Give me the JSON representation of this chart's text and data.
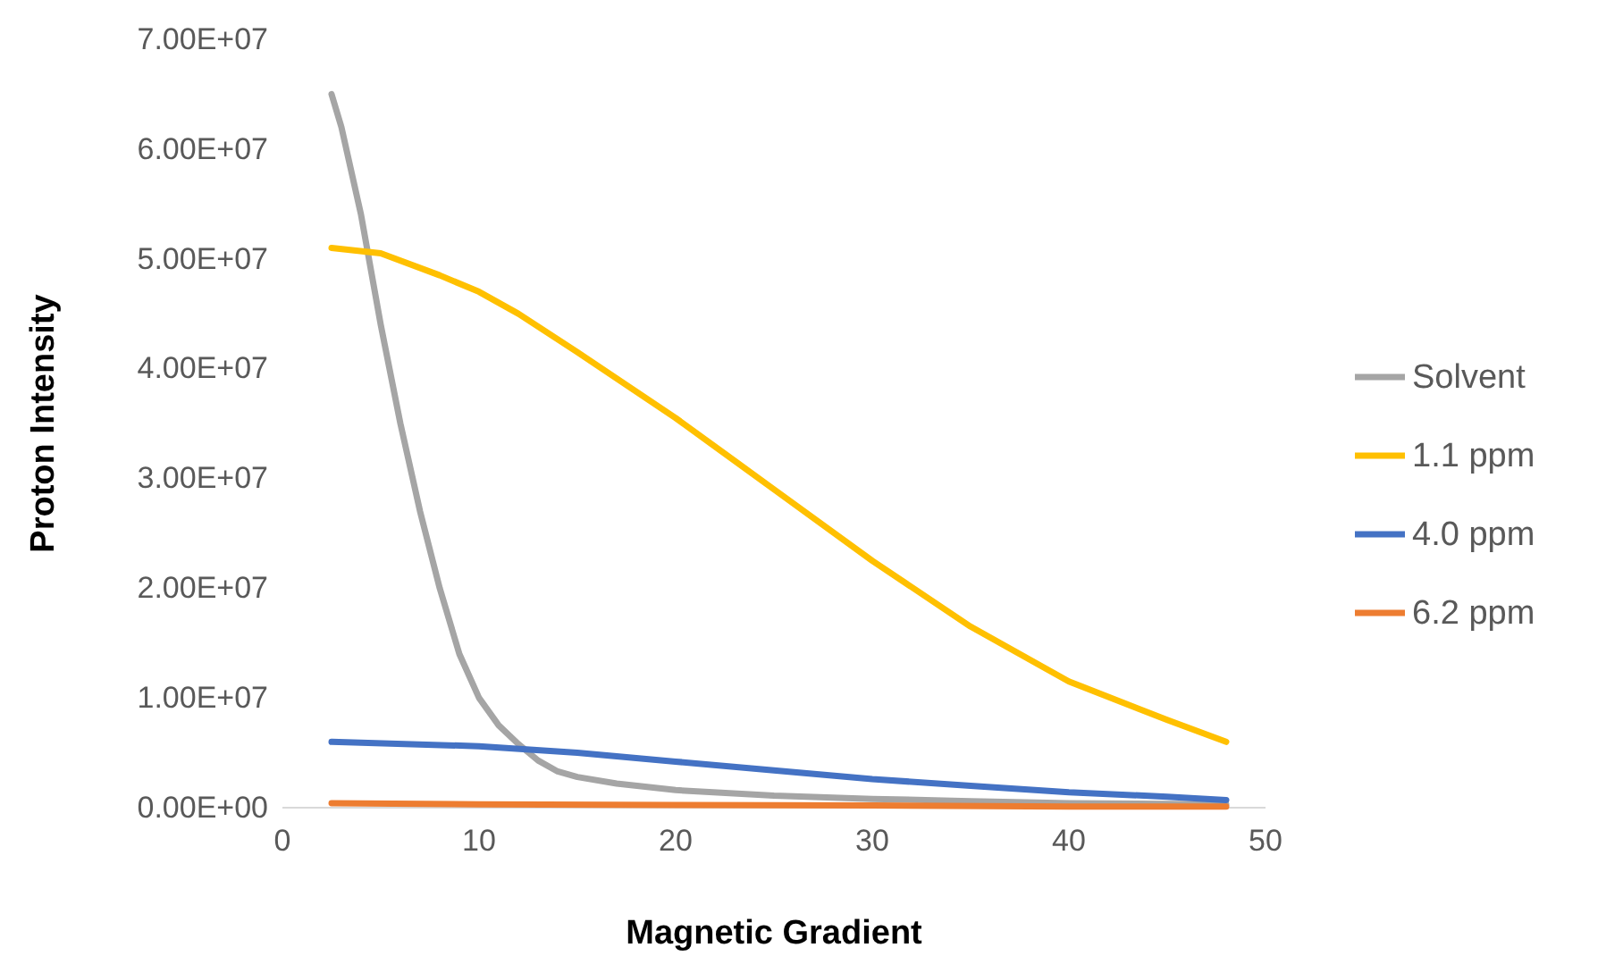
{
  "chart_data": {
    "type": "line",
    "xlabel": "Magnetic Gradient",
    "ylabel": "Proton Intensity",
    "xlim": [
      0,
      50
    ],
    "xticks": [
      0,
      10,
      20,
      30,
      40,
      50
    ],
    "ylim": [
      0,
      70000000
    ],
    "yticks": [
      {
        "value": 0,
        "label": "0.00E+00"
      },
      {
        "value": 10000000,
        "label": "1.00E+07"
      },
      {
        "value": 20000000,
        "label": "2.00E+07"
      },
      {
        "value": 30000000,
        "label": "3.00E+07"
      },
      {
        "value": 40000000,
        "label": "4.00E+07"
      },
      {
        "value": 50000000,
        "label": "5.00E+07"
      },
      {
        "value": 60000000,
        "label": "6.00E+07"
      },
      {
        "value": 70000000,
        "label": "7.00E+07"
      }
    ],
    "grid": false,
    "legend": "right",
    "marker": "none",
    "line_style": "solid",
    "series": [
      {
        "name": "Solvent",
        "color": "#a5a5a5",
        "x": [
          2.5,
          3,
          4,
          5,
          6,
          7,
          8,
          9,
          10,
          11,
          12,
          13,
          14,
          15,
          17,
          20,
          25,
          30,
          35,
          40,
          48
        ],
        "values": [
          65000000,
          62000000,
          54000000,
          44000000,
          35000000,
          27000000,
          20000000,
          14000000,
          10000000,
          7500000,
          5800000,
          4300000,
          3300000,
          2800000,
          2200000,
          1600000,
          1100000,
          800000,
          600000,
          400000,
          300000
        ]
      },
      {
        "name": "1.1 ppm",
        "color": "#ffc000",
        "x": [
          2.5,
          5,
          8,
          10,
          12,
          15,
          20,
          25,
          30,
          35,
          40,
          45,
          48
        ],
        "values": [
          51000000,
          50500000,
          48500000,
          47000000,
          45000000,
          41500000,
          35500000,
          29000000,
          22500000,
          16500000,
          11500000,
          8000000,
          6000000
        ]
      },
      {
        "name": "4.0 ppm",
        "color": "#4472c4",
        "x": [
          2.5,
          10,
          15,
          20,
          25,
          30,
          35,
          40,
          45,
          48
        ],
        "values": [
          6000000,
          5600000,
          5000000,
          4200000,
          3400000,
          2600000,
          2000000,
          1400000,
          1000000,
          700000
        ]
      },
      {
        "name": "6.2 ppm",
        "color": "#ed7d31",
        "x": [
          2.5,
          10,
          20,
          30,
          40,
          48
        ],
        "values": [
          400000,
          300000,
          250000,
          200000,
          100000,
          100000
        ]
      }
    ]
  }
}
